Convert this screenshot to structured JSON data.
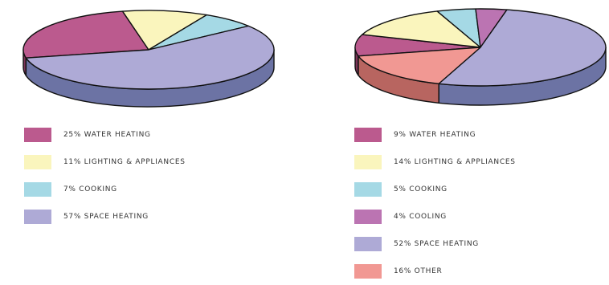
{
  "chart_data": [
    {
      "type": "pie",
      "slices": [
        {
          "label": "25% WATER HEATING",
          "value": 25,
          "color": "#bb5a8e",
          "side_color": "#7c3458"
        },
        {
          "label": "11% LIGHTING & APPLIANCES",
          "value": 11,
          "color": "#faf5bd",
          "side_color": "#c9c38a"
        },
        {
          "label": "7% COOKING",
          "value": 7,
          "color": "#a5d9e5",
          "side_color": "#6aa2b0"
        },
        {
          "label": "57% SPACE HEATING",
          "value": 57,
          "color": "#aeaad6",
          "side_color": "#6c73a4"
        }
      ]
    },
    {
      "type": "pie",
      "slices": [
        {
          "label": "9% WATER HEATING",
          "value": 9,
          "color": "#bb5a8e",
          "side_color": "#7c3458"
        },
        {
          "label": "14% LIGHTING & APPLIANCES",
          "value": 14,
          "color": "#faf5bd",
          "side_color": "#c9c38a"
        },
        {
          "label": "5% COOKING",
          "value": 5,
          "color": "#a5d9e5",
          "side_color": "#6aa2b0"
        },
        {
          "label": "4% COOLING",
          "value": 4,
          "color": "#bb74b2",
          "side_color": "#7f4677"
        },
        {
          "label": "52% SPACE HEATING",
          "value": 52,
          "color": "#aeaad6",
          "side_color": "#6c73a4"
        },
        {
          "label": "16% OTHER",
          "value": 16,
          "color": "#f19893",
          "side_color": "#b86560"
        }
      ]
    }
  ]
}
